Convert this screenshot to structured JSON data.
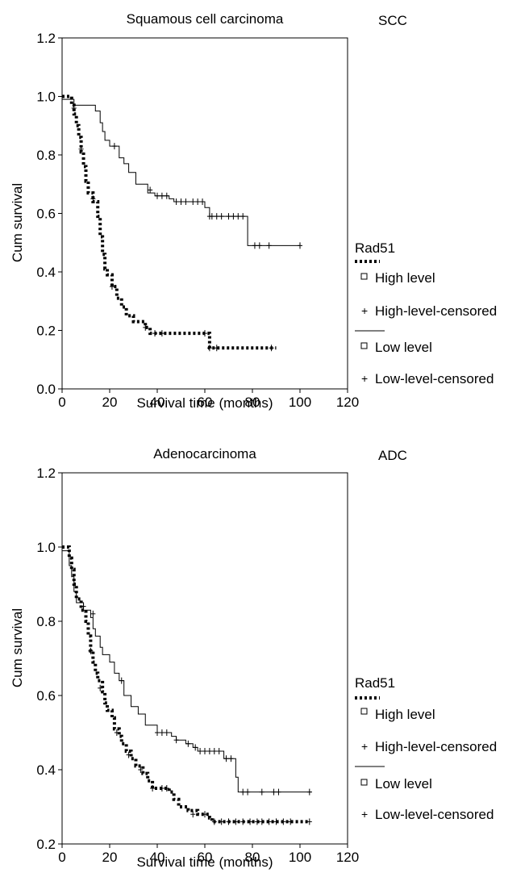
{
  "chart_data": [
    {
      "type": "line",
      "title": "Squamous cell carcinoma",
      "tag": "SCC",
      "xlabel": "Survival time (months)",
      "ylabel": "Cum survival",
      "xlim": [
        0,
        120
      ],
      "ylim": [
        0.0,
        1.2
      ],
      "xticks": [
        "0",
        "20",
        "40",
        "60",
        "80",
        "100",
        "120"
      ],
      "yticks": [
        "0.0",
        "0.2",
        "0.4",
        "0.6",
        "0.8",
        "1.0",
        "1.2"
      ],
      "legend_title": "Rad51",
      "legend": [
        "High level",
        "High-level-censored",
        "Low level",
        "Low-level-censored"
      ],
      "grid": false,
      "series": [
        {
          "name": "High level",
          "style": "dotted",
          "steps": [
            [
              0,
              1.0
            ],
            [
              4,
              1.0
            ],
            [
              4,
              0.97
            ],
            [
              5,
              0.94
            ],
            [
              6,
              0.9
            ],
            [
              7,
              0.86
            ],
            [
              8,
              0.81
            ],
            [
              9,
              0.76
            ],
            [
              10,
              0.71
            ],
            [
              11,
              0.67
            ],
            [
              13,
              0.64
            ],
            [
              15,
              0.59
            ],
            [
              16,
              0.52
            ],
            [
              17,
              0.46
            ],
            [
              18,
              0.41
            ],
            [
              19,
              0.39
            ],
            [
              21,
              0.35
            ],
            [
              23,
              0.31
            ],
            [
              25,
              0.28
            ],
            [
              27,
              0.25
            ],
            [
              30,
              0.23
            ],
            [
              35,
              0.21
            ],
            [
              37,
              0.19
            ],
            [
              61,
              0.19
            ],
            [
              62,
              0.14
            ],
            [
              90,
              0.14
            ]
          ],
          "censored": [
            [
              5,
              0.96
            ],
            [
              8,
              0.82
            ],
            [
              13,
              0.65
            ],
            [
              21,
              0.35
            ],
            [
              35,
              0.21
            ],
            [
              39,
              0.19
            ],
            [
              42,
              0.19
            ],
            [
              60,
              0.19
            ],
            [
              62,
              0.14
            ],
            [
              65,
              0.14
            ],
            [
              88,
              0.14
            ]
          ]
        },
        {
          "name": "Low level",
          "style": "solid",
          "steps": [
            [
              0,
              0.99
            ],
            [
              5,
              0.99
            ],
            [
              5,
              0.97
            ],
            [
              14,
              0.97
            ],
            [
              14,
              0.95
            ],
            [
              16,
              0.91
            ],
            [
              17,
              0.88
            ],
            [
              18,
              0.85
            ],
            [
              20,
              0.83
            ],
            [
              24,
              0.79
            ],
            [
              26,
              0.77
            ],
            [
              28,
              0.74
            ],
            [
              31,
              0.7
            ],
            [
              36,
              0.67
            ],
            [
              39,
              0.66
            ],
            [
              45,
              0.65
            ],
            [
              47,
              0.64
            ],
            [
              60,
              0.62
            ],
            [
              62,
              0.59
            ],
            [
              78,
              0.59
            ],
            [
              78,
              0.49
            ],
            [
              100,
              0.49
            ]
          ],
          "censored": [
            [
              22,
              0.83
            ],
            [
              37,
              0.68
            ],
            [
              40,
              0.66
            ],
            [
              42,
              0.66
            ],
            [
              44,
              0.66
            ],
            [
              48,
              0.64
            ],
            [
              50,
              0.64
            ],
            [
              52,
              0.64
            ],
            [
              55,
              0.64
            ],
            [
              57,
              0.64
            ],
            [
              59,
              0.64
            ],
            [
              62,
              0.59
            ],
            [
              63,
              0.59
            ],
            [
              65,
              0.59
            ],
            [
              67,
              0.59
            ],
            [
              70,
              0.59
            ],
            [
              72,
              0.59
            ],
            [
              74,
              0.59
            ],
            [
              76,
              0.59
            ],
            [
              81,
              0.49
            ],
            [
              83,
              0.49
            ],
            [
              87,
              0.49
            ],
            [
              100,
              0.49
            ]
          ]
        }
      ]
    },
    {
      "type": "line",
      "title": "Adenocarcinoma",
      "tag": "ADC",
      "xlabel": "Survival time (months)",
      "ylabel": "Cum survival",
      "xlim": [
        0,
        120
      ],
      "ylim": [
        0.2,
        1.2
      ],
      "xticks": [
        "0",
        "20",
        "40",
        "60",
        "80",
        "100",
        "120"
      ],
      "yticks": [
        "0.2",
        "0.4",
        "0.6",
        "0.8",
        "1.0",
        "1.2"
      ],
      "legend_title": "Rad51",
      "legend": [
        "High level",
        "High-level-censored",
        "Low level",
        "Low-level-censored"
      ],
      "grid": false,
      "series": [
        {
          "name": "High level",
          "style": "dotted",
          "steps": [
            [
              0,
              1.0
            ],
            [
              3,
              1.0
            ],
            [
              3,
              0.97
            ],
            [
              4,
              0.94
            ],
            [
              5,
              0.9
            ],
            [
              6,
              0.86
            ],
            [
              8,
              0.83
            ],
            [
              10,
              0.8
            ],
            [
              11,
              0.76
            ],
            [
              12,
              0.72
            ],
            [
              13,
              0.69
            ],
            [
              14,
              0.66
            ],
            [
              15,
              0.64
            ],
            [
              17,
              0.61
            ],
            [
              18,
              0.58
            ],
            [
              19,
              0.56
            ],
            [
              21,
              0.54
            ],
            [
              22,
              0.51
            ],
            [
              24,
              0.49
            ],
            [
              25,
              0.47
            ],
            [
              27,
              0.45
            ],
            [
              29,
              0.43
            ],
            [
              31,
              0.41
            ],
            [
              34,
              0.39
            ],
            [
              36,
              0.37
            ],
            [
              38,
              0.35
            ],
            [
              45,
              0.34
            ],
            [
              47,
              0.32
            ],
            [
              49,
              0.3
            ],
            [
              53,
              0.29
            ],
            [
              57,
              0.28
            ],
            [
              62,
              0.27
            ],
            [
              63,
              0.26
            ],
            [
              104,
              0.26
            ]
          ],
          "censored": [
            [
              12,
              0.72
            ],
            [
              16,
              0.62
            ],
            [
              23,
              0.5
            ],
            [
              28,
              0.44
            ],
            [
              33,
              0.4
            ],
            [
              38,
              0.35
            ],
            [
              42,
              0.35
            ],
            [
              44,
              0.35
            ],
            [
              55,
              0.28
            ],
            [
              60,
              0.28
            ],
            [
              64,
              0.26
            ],
            [
              67,
              0.26
            ],
            [
              70,
              0.26
            ],
            [
              73,
              0.26
            ],
            [
              76,
              0.26
            ],
            [
              79,
              0.26
            ],
            [
              82,
              0.26
            ],
            [
              84,
              0.26
            ],
            [
              87,
              0.26
            ],
            [
              90,
              0.26
            ],
            [
              93,
              0.26
            ],
            [
              96,
              0.26
            ],
            [
              104,
              0.26
            ]
          ]
        },
        {
          "name": "Low level",
          "style": "solid",
          "steps": [
            [
              0,
              0.99
            ],
            [
              3,
              0.99
            ],
            [
              3,
              0.95
            ],
            [
              4,
              0.92
            ],
            [
              5,
              0.88
            ],
            [
              6,
              0.85
            ],
            [
              9,
              0.83
            ],
            [
              12,
              0.81
            ],
            [
              13,
              0.78
            ],
            [
              14,
              0.76
            ],
            [
              16,
              0.73
            ],
            [
              17,
              0.71
            ],
            [
              20,
              0.69
            ],
            [
              22,
              0.66
            ],
            [
              24,
              0.64
            ],
            [
              26,
              0.6
            ],
            [
              29,
              0.57
            ],
            [
              32,
              0.55
            ],
            [
              35,
              0.52
            ],
            [
              40,
              0.5
            ],
            [
              46,
              0.49
            ],
            [
              48,
              0.48
            ],
            [
              52,
              0.47
            ],
            [
              55,
              0.46
            ],
            [
              57,
              0.45
            ],
            [
              66,
              0.45
            ],
            [
              68,
              0.43
            ],
            [
              72,
              0.43
            ],
            [
              73,
              0.38
            ],
            [
              74,
              0.34
            ],
            [
              105,
              0.34
            ]
          ],
          "censored": [
            [
              9,
              0.84
            ],
            [
              13,
              0.82
            ],
            [
              25,
              0.64
            ],
            [
              40,
              0.5
            ],
            [
              42,
              0.5
            ],
            [
              44,
              0.5
            ],
            [
              48,
              0.48
            ],
            [
              53,
              0.47
            ],
            [
              56,
              0.46
            ],
            [
              58,
              0.45
            ],
            [
              60,
              0.45
            ],
            [
              62,
              0.45
            ],
            [
              64,
              0.45
            ],
            [
              66,
              0.45
            ],
            [
              69,
              0.43
            ],
            [
              71,
              0.43
            ],
            [
              76,
              0.34
            ],
            [
              78,
              0.34
            ],
            [
              84,
              0.34
            ],
            [
              89,
              0.34
            ],
            [
              91,
              0.34
            ],
            [
              104,
              0.34
            ]
          ]
        }
      ]
    }
  ]
}
